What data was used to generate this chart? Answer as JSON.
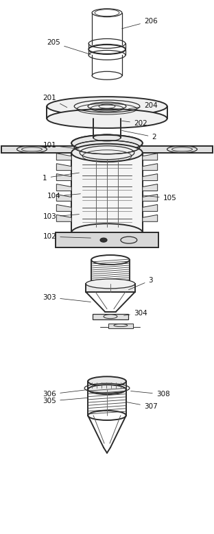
{
  "bg_color": "#ffffff",
  "lc": "#2a2a2a",
  "lw": 0.9,
  "lw2": 1.4,
  "fs": 7.5,
  "fig_w": 3.12,
  "fig_h": 7.79
}
